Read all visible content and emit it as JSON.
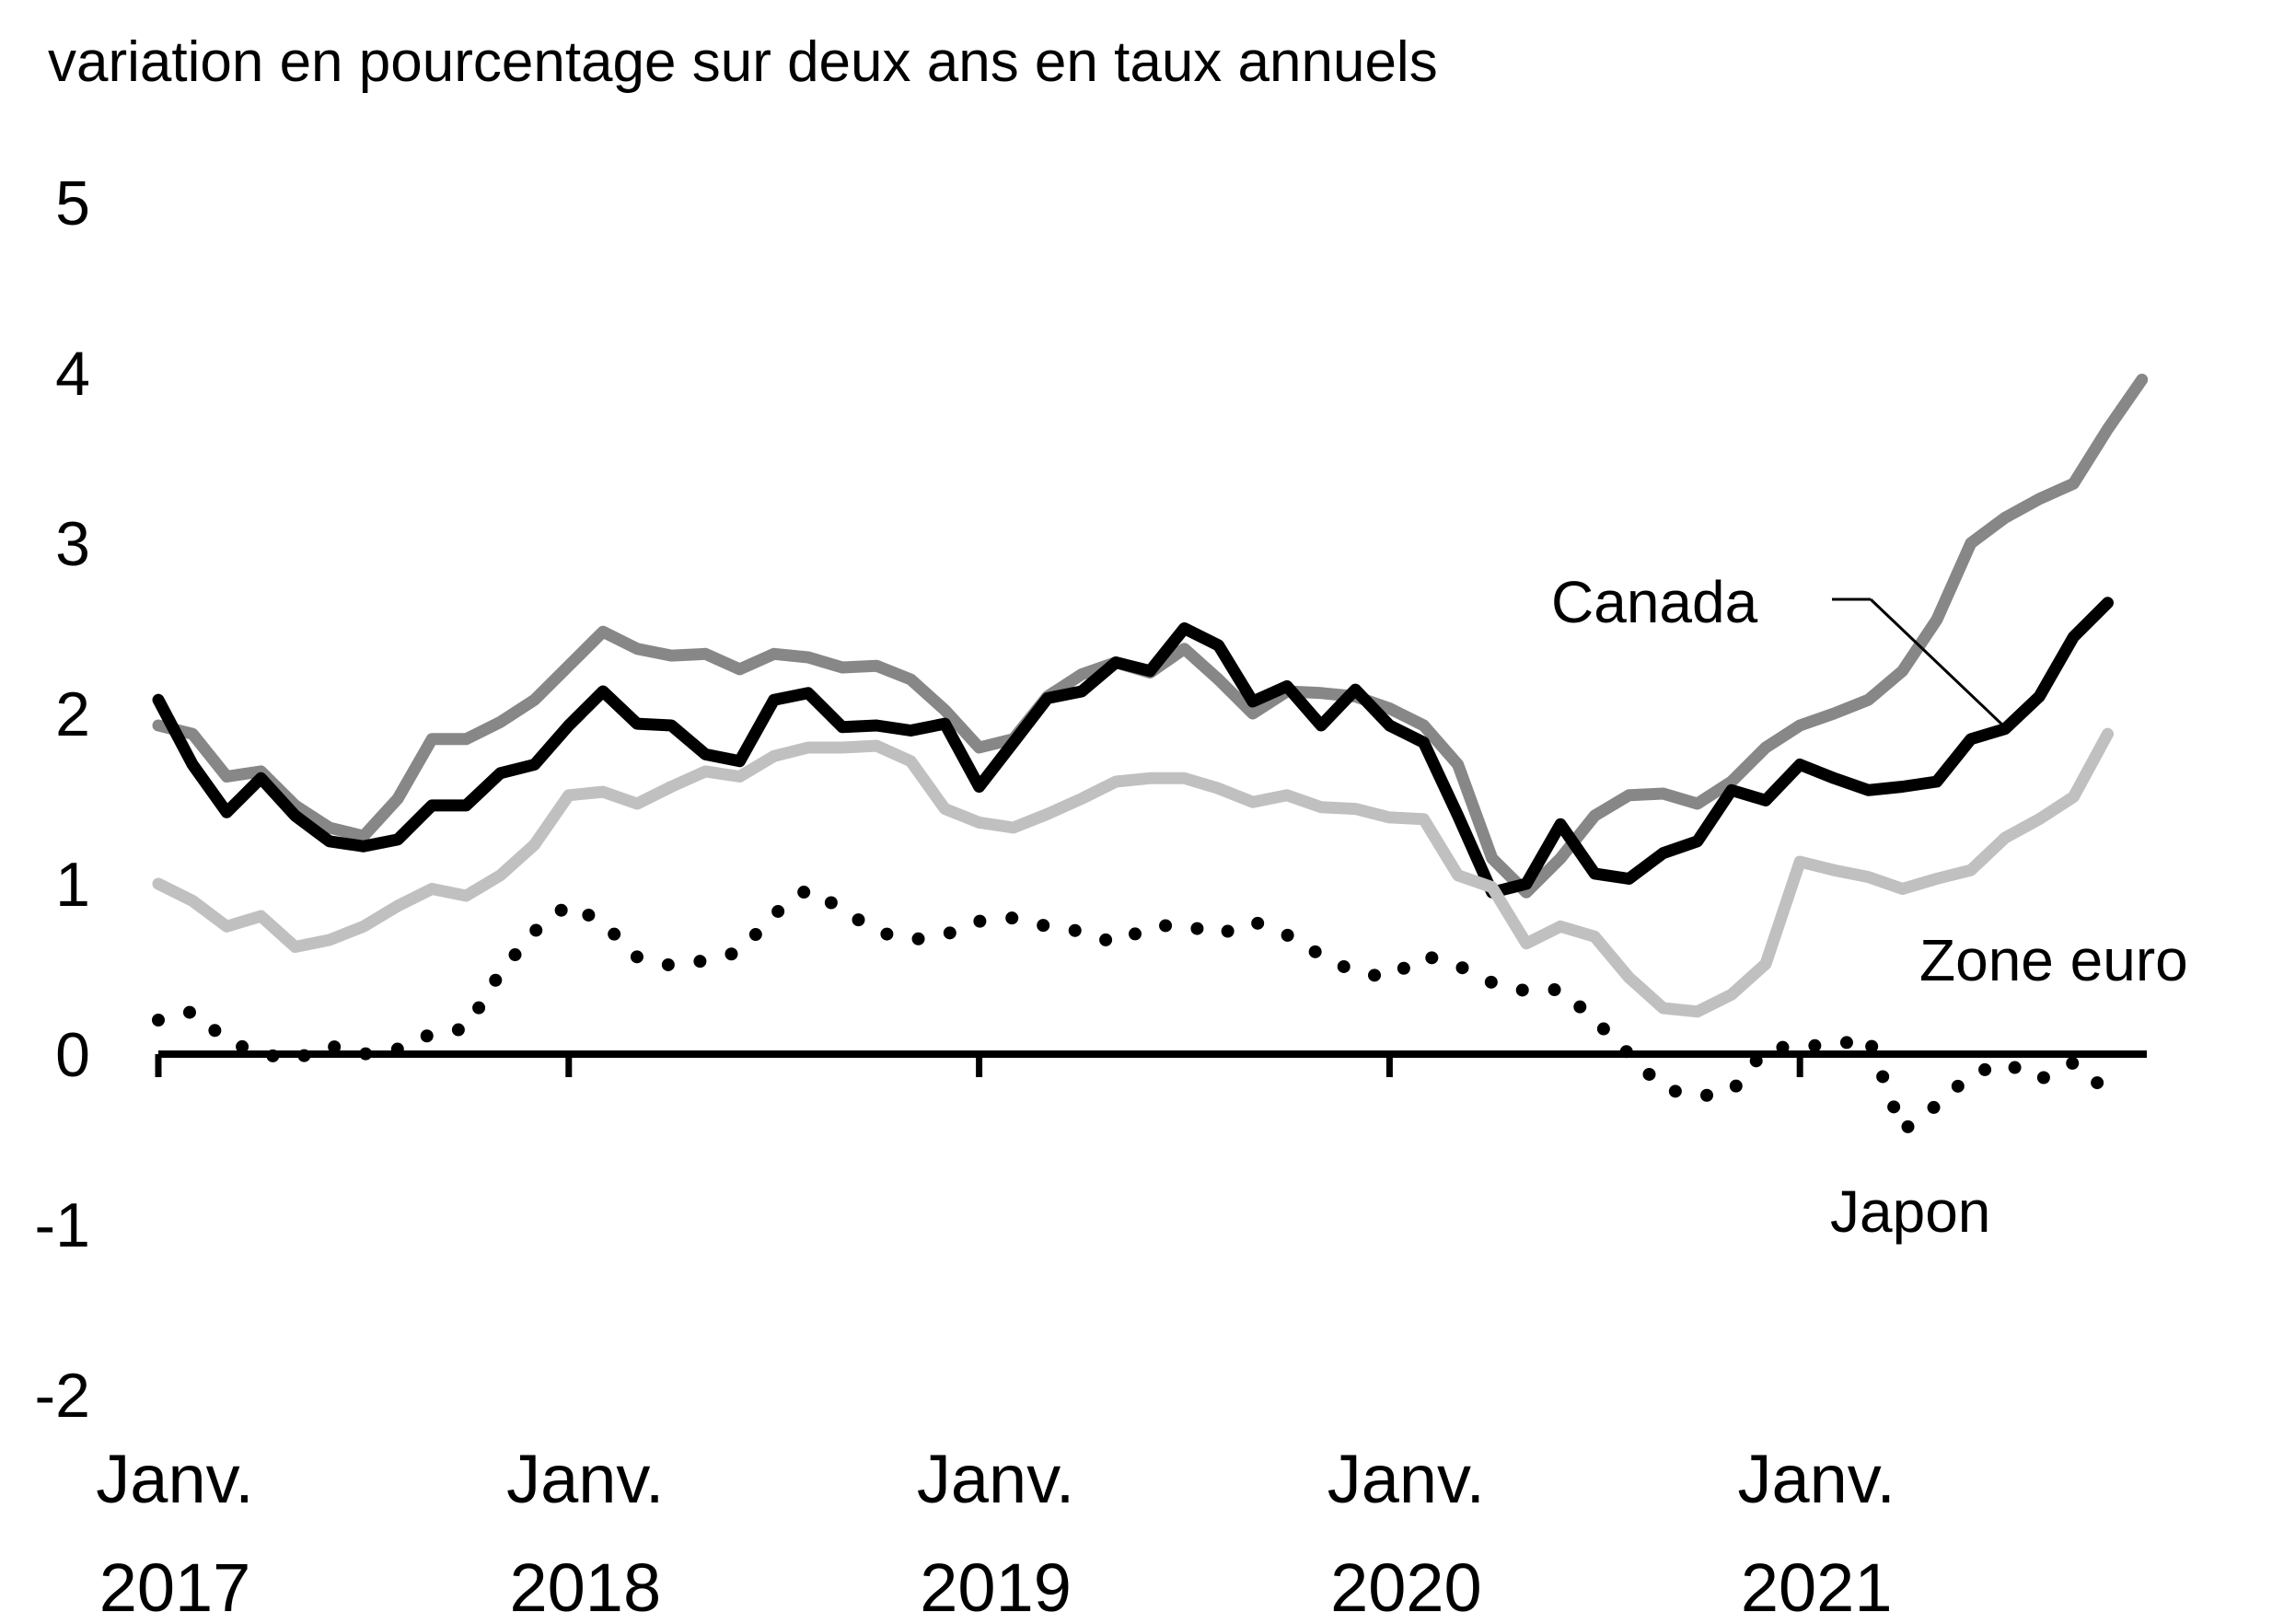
{
  "chart_data": {
    "type": "line",
    "ylabel": "variation en pourcentage sur deux ans en taux annuels",
    "ylim": [
      -2,
      5
    ],
    "yticks": [
      5,
      4,
      3,
      2,
      1,
      0,
      -1,
      -2
    ],
    "x_start": "2017-01",
    "x_end": "2021-11",
    "xticks": [
      {
        "month": "2017-01",
        "line1": "Janv.",
        "line2": "2017"
      },
      {
        "month": "2018-01",
        "line1": "Janv.",
        "line2": "2018"
      },
      {
        "month": "2019-01",
        "line1": "Janv.",
        "line2": "2019"
      },
      {
        "month": "2020-01",
        "line1": "Janv.",
        "line2": "2020"
      },
      {
        "month": "2021-01",
        "line1": "Janv.",
        "line2": "2021"
      }
    ],
    "grid": false,
    "series": [
      {
        "name": "",
        "color": "#878787",
        "dash": "",
        "values": [
          1.93,
          1.88,
          1.63,
          1.66,
          1.46,
          1.33,
          1.28,
          1.5,
          1.85,
          1.85,
          1.95,
          2.08,
          2.28,
          2.48,
          2.38,
          2.34,
          2.35,
          2.26,
          2.35,
          2.33,
          2.27,
          2.28,
          2.2,
          2.02,
          1.8,
          1.85,
          2.1,
          2.23,
          2.3,
          2.24,
          2.38,
          2.2,
          2.0,
          2.13,
          2.12,
          2.1,
          2.03,
          1.93,
          1.7,
          1.15,
          0.95,
          1.15,
          1.4,
          1.52,
          1.53,
          1.47,
          1.6,
          1.8,
          1.93,
          2.0,
          2.08,
          2.25,
          2.55,
          3.0,
          3.15,
          3.26,
          3.35,
          3.67,
          3.96
        ]
      },
      {
        "name": "Canada",
        "color": "#000000",
        "dash": "",
        "values": [
          2.08,
          1.7,
          1.42,
          1.62,
          1.4,
          1.25,
          1.22,
          1.26,
          1.46,
          1.46,
          1.65,
          1.7,
          1.93,
          2.13,
          1.94,
          1.93,
          1.76,
          1.72,
          2.08,
          2.12,
          1.92,
          1.93,
          1.9,
          1.94,
          1.57,
          1.83,
          2.09,
          2.13,
          2.3,
          2.25,
          2.5,
          2.4,
          2.07,
          2.16,
          1.93,
          2.14,
          1.93,
          1.83,
          1.4,
          0.95,
          1.0,
          1.35,
          1.06,
          1.03,
          1.18,
          1.25,
          1.55,
          1.49,
          1.7,
          1.62,
          1.55,
          1.57,
          1.6,
          1.85,
          1.91,
          2.1,
          2.45,
          2.65
        ]
      },
      {
        "name": "Zone euro",
        "color": "#c0c0c0",
        "dash": "",
        "values": [
          1.0,
          0.9,
          0.75,
          0.81,
          0.63,
          0.67,
          0.75,
          0.87,
          0.97,
          0.93,
          1.05,
          1.23,
          1.52,
          1.54,
          1.47,
          1.57,
          1.66,
          1.63,
          1.75,
          1.8,
          1.8,
          1.81,
          1.72,
          1.44,
          1.36,
          1.33,
          1.41,
          1.5,
          1.6,
          1.62,
          1.62,
          1.56,
          1.48,
          1.52,
          1.45,
          1.44,
          1.39,
          1.38,
          1.05,
          0.98,
          0.65,
          0.75,
          0.69,
          0.45,
          0.27,
          0.25,
          0.35,
          0.53,
          1.13,
          1.08,
          1.04,
          0.97,
          1.03,
          1.08,
          1.27,
          1.38,
          1.51,
          1.88
        ]
      },
      {
        "name": "Japon",
        "color": "#000000",
        "dash": "dotted",
        "values": [
          0.2,
          0.25,
          0.08,
          0.0,
          -0.03,
          0.05,
          0.0,
          0.03,
          0.12,
          0.15,
          0.48,
          0.72,
          0.88,
          0.77,
          0.57,
          0.52,
          0.55,
          0.6,
          0.82,
          0.97,
          0.85,
          0.72,
          0.67,
          0.7,
          0.78,
          0.8,
          0.75,
          0.72,
          0.65,
          0.75,
          0.76,
          0.7,
          0.78,
          0.7,
          0.58,
          0.48,
          0.45,
          0.58,
          0.52,
          0.42,
          0.37,
          0.38,
          0.2,
          0.0,
          -0.2,
          -0.25,
          -0.22,
          0.03,
          0.05,
          0.05,
          0.1,
          -0.45,
          -0.3,
          -0.12,
          -0.05,
          -0.15,
          -0.05,
          -0.22
        ]
      }
    ],
    "annotations": [
      {
        "text": "Canada"
      },
      {
        "text": "Zone euro"
      },
      {
        "text": "Japon"
      }
    ]
  }
}
